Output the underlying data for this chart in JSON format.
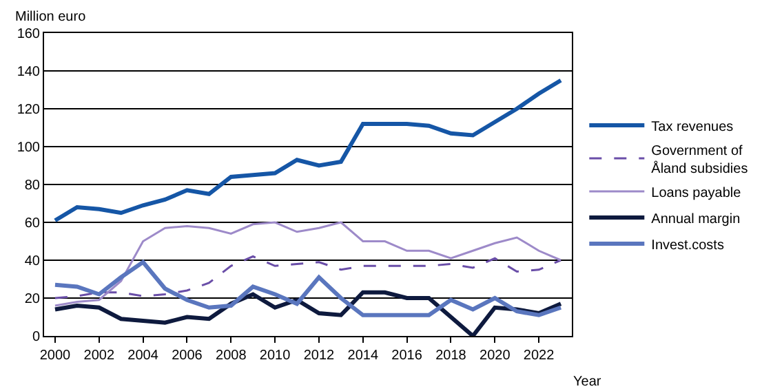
{
  "chart_data": {
    "type": "line",
    "ylabel": "Million euro",
    "xlabel": "Year",
    "x": [
      2000,
      2001,
      2002,
      2003,
      2004,
      2005,
      2006,
      2007,
      2008,
      2009,
      2010,
      2011,
      2012,
      2013,
      2014,
      2015,
      2016,
      2017,
      2018,
      2019,
      2020,
      2021,
      2022,
      2023
    ],
    "xlim": [
      1999.5,
      2023.5
    ],
    "xticks": [
      2000,
      2002,
      2004,
      2006,
      2008,
      2010,
      2012,
      2014,
      2016,
      2018,
      2020,
      2022
    ],
    "ylim": [
      0,
      160
    ],
    "yticks": [
      0,
      20,
      40,
      60,
      80,
      100,
      120,
      140,
      160
    ],
    "grid": "y",
    "legend": "right",
    "marker": "none",
    "series": [
      {
        "name": "Tax revenues",
        "color": "#1556a6",
        "line_style": "solid",
        "values": [
          61,
          68,
          67,
          65,
          69,
          72,
          77,
          75,
          84,
          85,
          86,
          93,
          90,
          92,
          112,
          112,
          112,
          111,
          107,
          106,
          113,
          120,
          128,
          135
        ]
      },
      {
        "name": "Government of Åland subsidies",
        "color": "#6a4ea8",
        "line_style": "dashed",
        "values": [
          20,
          21,
          23,
          23,
          21,
          22,
          24,
          28,
          37,
          42,
          37,
          38,
          39,
          35,
          37,
          37,
          37,
          37,
          38,
          36,
          41,
          34,
          35,
          40
        ]
      },
      {
        "name": "Loans payable",
        "color": "#9d8ac9",
        "line_style": "solid",
        "values": [
          16,
          18,
          19,
          29,
          50,
          57,
          58,
          57,
          54,
          59,
          60,
          55,
          57,
          60,
          50,
          50,
          45,
          45,
          41,
          45,
          49,
          52,
          45,
          40
        ]
      },
      {
        "name": "Annual margin",
        "color": "#0e1a3e",
        "line_style": "solid",
        "values": [
          14,
          16,
          15,
          9,
          8,
          7,
          10,
          9,
          17,
          22,
          15,
          19,
          12,
          11,
          23,
          23,
          20,
          20,
          10,
          0,
          15,
          14,
          12,
          17
        ]
      },
      {
        "name": "Invest.costs",
        "color": "#5a76be",
        "line_style": "solid",
        "values": [
          27,
          26,
          22,
          31,
          39,
          25,
          19,
          15,
          16,
          26,
          22,
          17,
          31,
          20,
          11,
          11,
          11,
          11,
          19,
          14,
          20,
          13,
          11,
          15
        ]
      }
    ]
  }
}
